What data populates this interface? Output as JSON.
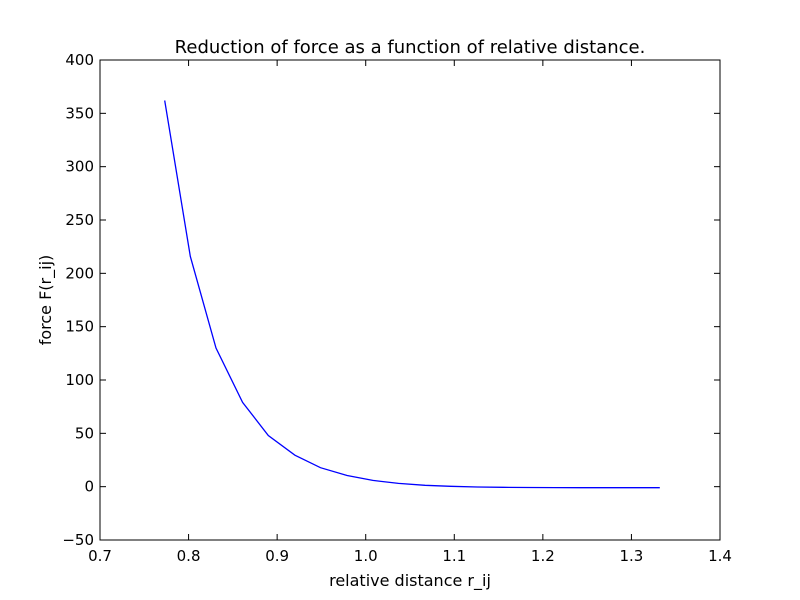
{
  "chart_data": {
    "type": "line",
    "title": "Reduction of force as a function of relative distance.",
    "xlabel": "relative distance r_ij",
    "ylabel": "force F(r_ij)",
    "xlim": [
      0.7,
      1.4
    ],
    "ylim": [
      -50,
      400
    ],
    "xticks": [
      0.7,
      0.8,
      0.9,
      1.0,
      1.1,
      1.2,
      1.3,
      1.4
    ],
    "xtick_labels": [
      "0.7",
      "0.8",
      "0.9",
      "1.0",
      "1.1",
      "1.2",
      "1.3",
      "1.4"
    ],
    "yticks": [
      -50,
      0,
      50,
      100,
      150,
      200,
      250,
      300,
      350,
      400
    ],
    "ytick_labels": [
      "−50",
      "0",
      "50",
      "100",
      "150",
      "200",
      "250",
      "300",
      "350",
      "400"
    ],
    "grid": false,
    "legend": false,
    "series": [
      {
        "color": "#0000ff",
        "x": [
          0.773,
          0.802,
          0.831,
          0.861,
          0.89,
          0.92,
          0.949,
          0.979,
          1.008,
          1.037,
          1.067,
          1.096,
          1.126,
          1.155,
          1.184,
          1.214,
          1.243,
          1.273,
          1.302,
          1.332
        ],
        "y": [
          362,
          216,
          130,
          79,
          48,
          29.5,
          17.8,
          10.5,
          5.9,
          3.1,
          1.3,
          0.3,
          -0.3,
          -0.6,
          -0.8,
          -0.9,
          -1.0,
          -1.0,
          -1.0,
          -1.0
        ]
      }
    ]
  }
}
